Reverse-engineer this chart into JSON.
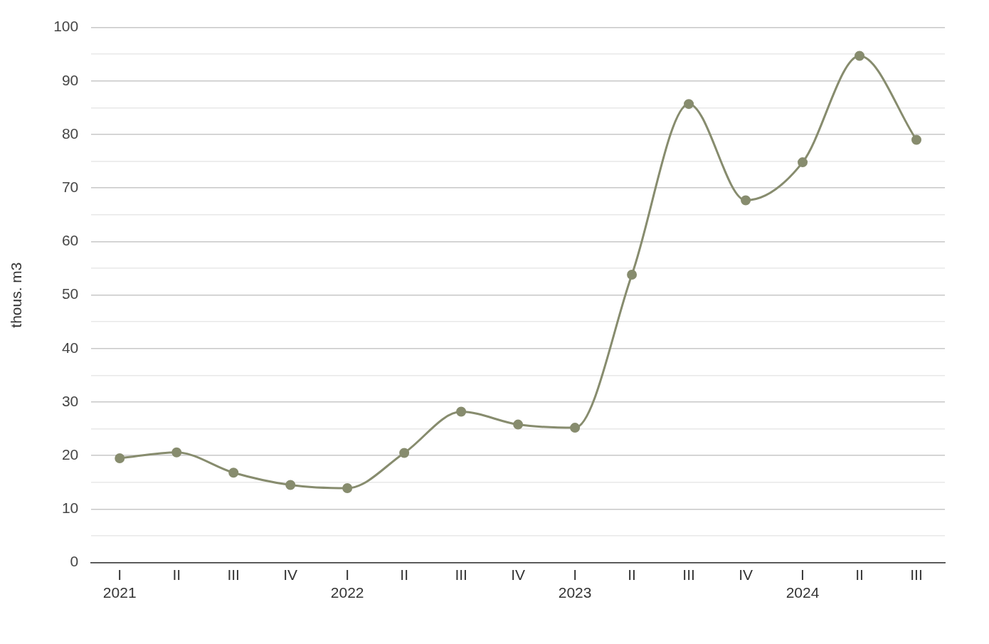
{
  "chart_data": {
    "type": "line",
    "ylabel": "thous. m3",
    "categories": [
      "I\n2021",
      "II",
      "III",
      "IV",
      "I\n2022",
      "II",
      "III",
      "IV",
      "I\n2023",
      "II",
      "III",
      "IV",
      "I\n2024",
      "II",
      "III"
    ],
    "series": [
      {
        "color": "#878c6e",
        "values": [
          19.5,
          20.6,
          16.8,
          14.5,
          13.9,
          20.5,
          28.2,
          25.8,
          25.2,
          53.8,
          85.7,
          67.7,
          74.8,
          94.7,
          79.0
        ]
      }
    ],
    "ylim": [
      0,
      100
    ],
    "yticks": [
      0,
      {
        "value": 5,
        "label": null
      },
      10,
      {
        "value": 15,
        "label": null
      },
      20,
      {
        "value": 25,
        "label": null
      },
      30,
      {
        "value": 35,
        "label": null
      },
      40,
      {
        "value": 45,
        "label": null
      },
      50,
      {
        "value": 55,
        "label": null
      },
      60,
      {
        "value": 65,
        "label": null
      },
      70,
      {
        "value": 75,
        "label": null
      },
      80,
      {
        "value": 85,
        "label": null
      },
      90,
      {
        "value": 95,
        "label": null
      },
      100
    ],
    "grid": "y",
    "legend": false,
    "marker": "circle",
    "line_style": "solid"
  }
}
